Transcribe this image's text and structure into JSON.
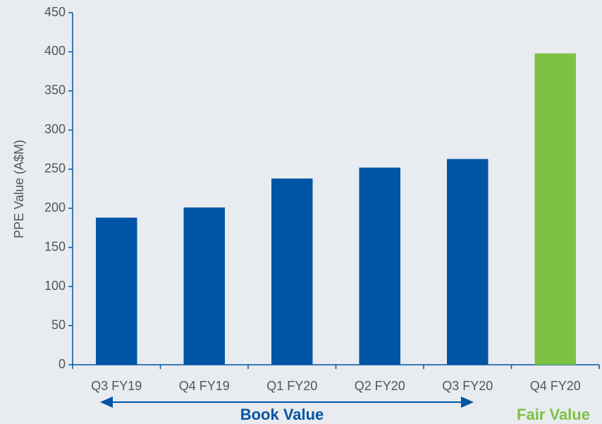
{
  "chart_data": {
    "type": "bar",
    "ylabel": "PPE Value (A$M)",
    "categories": [
      "Q3 FY19",
      "Q4 FY19",
      "Q1 FY20",
      "Q2 FY20",
      "Q3 FY20",
      "Q4 FY20"
    ],
    "values": [
      188,
      201,
      238,
      252,
      263,
      398
    ],
    "colors": [
      "#0055a4",
      "#0055a4",
      "#0055a4",
      "#0055a4",
      "#0055a4",
      "#7dc243"
    ],
    "ylim": [
      0,
      450
    ],
    "yticks": [
      0,
      50,
      100,
      150,
      200,
      250,
      300,
      350,
      400,
      450
    ],
    "annotations": [
      {
        "text": "Book Value",
        "color": "#0055a4"
      },
      {
        "text": "Fair Value",
        "color": "#7dc243"
      }
    ]
  }
}
